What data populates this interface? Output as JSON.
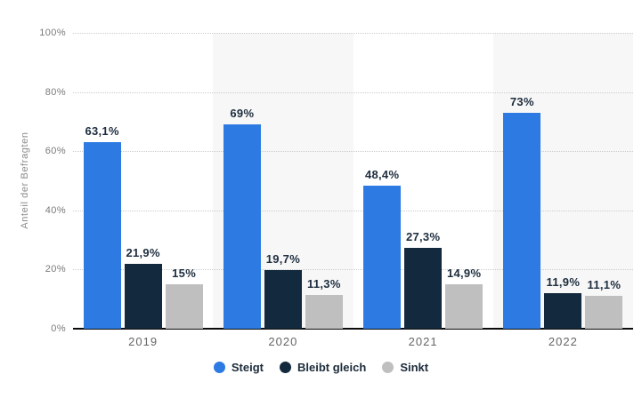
{
  "chart_data": {
    "type": "bar",
    "title": "",
    "xlabel": "",
    "ylabel": "Anteil der Befragten",
    "ylim": [
      0,
      100
    ],
    "yticks": [
      {
        "value": 0,
        "label": "0%"
      },
      {
        "value": 20,
        "label": "20%"
      },
      {
        "value": 40,
        "label": "40%"
      },
      {
        "value": 60,
        "label": "60%"
      },
      {
        "value": 80,
        "label": "80%"
      },
      {
        "value": 100,
        "label": "100%"
      }
    ],
    "categories": [
      "2019",
      "2020",
      "2021",
      "2022"
    ],
    "series": [
      {
        "name": "Steigt",
        "color": "#2d7be2",
        "values": [
          63.1,
          69,
          48.4,
          73
        ],
        "value_labels": [
          "63,1%",
          "69%",
          "48,4%",
          "73%"
        ]
      },
      {
        "name": "Bleibt gleich",
        "color": "#13293d",
        "values": [
          21.9,
          19.7,
          27.3,
          11.9
        ],
        "value_labels": [
          "21,9%",
          "19,7%",
          "27,3%",
          "11,9%"
        ]
      },
      {
        "name": "Sinkt",
        "color": "#bfbfbf",
        "values": [
          15,
          11.3,
          14.9,
          11.1
        ],
        "value_labels": [
          "15%",
          "11,3%",
          "14,9%",
          "11,1%"
        ]
      }
    ],
    "legend_position": "bottom",
    "grid": "horizontal-dotted",
    "banded_category_indexes": [
      1,
      3
    ],
    "band_color": "#f7f7f7"
  },
  "colors": {
    "background": "#ffffff",
    "gridline": "#cccccc",
    "axis_line": "#0a0a0a",
    "tick_text": "#7a7a7a",
    "x_tick_text": "#666666",
    "value_label_text": "#1d2d3e",
    "legend_text": "#1c2b3b"
  }
}
